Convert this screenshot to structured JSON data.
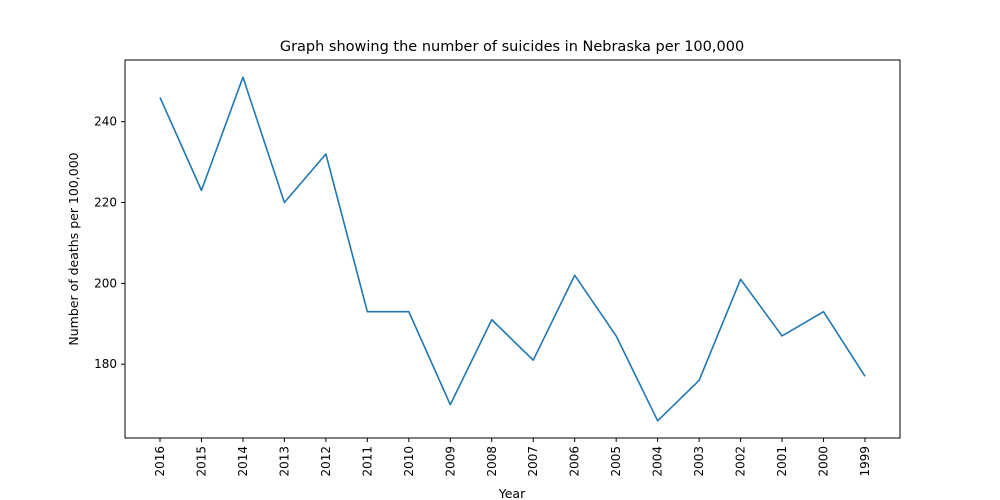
{
  "chart_data": {
    "type": "line",
    "title": "Graph showing the number of suicides in Nebraska per 100,000",
    "xlabel": "Year",
    "ylabel": "Number of deaths per 100,000",
    "categories": [
      "2016",
      "2015",
      "2014",
      "2013",
      "2012",
      "2011",
      "2010",
      "2009",
      "2008",
      "2007",
      "2006",
      "2005",
      "2004",
      "2003",
      "2002",
      "2001",
      "2000",
      "1999"
    ],
    "series": [
      {
        "values": [
          246,
          223,
          251,
          220,
          232,
          193,
          193,
          170,
          191,
          181,
          202,
          187,
          166,
          176,
          201,
          187,
          193,
          177
        ]
      }
    ],
    "ylim": [
      161.75,
      255.25
    ],
    "yticks": [
      180,
      200,
      220,
      240
    ],
    "grid": false,
    "line_color": "#1f77b4"
  }
}
